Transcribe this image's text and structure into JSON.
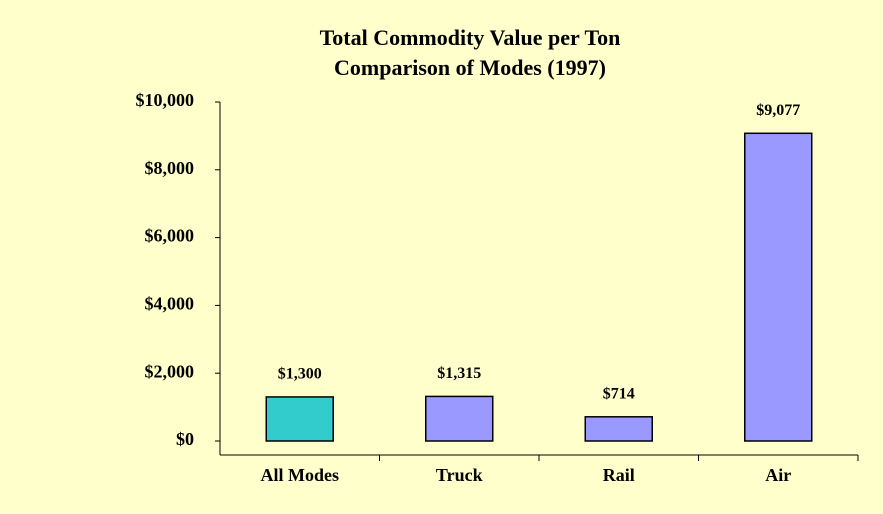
{
  "chart_data": {
    "type": "bar",
    "title": "Total Commodity Value per Ton",
    "subtitle": "Comparison of Modes (1997)",
    "categories": [
      "All Modes",
      "Truck",
      "Rail",
      "Air"
    ],
    "values": [
      1300,
      1315,
      714,
      9077
    ],
    "value_labels": [
      "$1,300",
      "$1,315",
      "$714",
      "$9,077"
    ],
    "colors": [
      "#33cccc",
      "#9999ff",
      "#9999ff",
      "#9999ff"
    ],
    "ylim": [
      0,
      10000
    ],
    "yticks": [
      {
        "value": 0,
        "label": "$0"
      },
      {
        "value": 2000,
        "label": "$2,000"
      },
      {
        "value": 4000,
        "label": "$4,000"
      },
      {
        "value": 6000,
        "label": "$6,000"
      },
      {
        "value": 8000,
        "label": "$8,000"
      },
      {
        "value": 10000,
        "label": "$10,000"
      }
    ],
    "grid": false
  }
}
